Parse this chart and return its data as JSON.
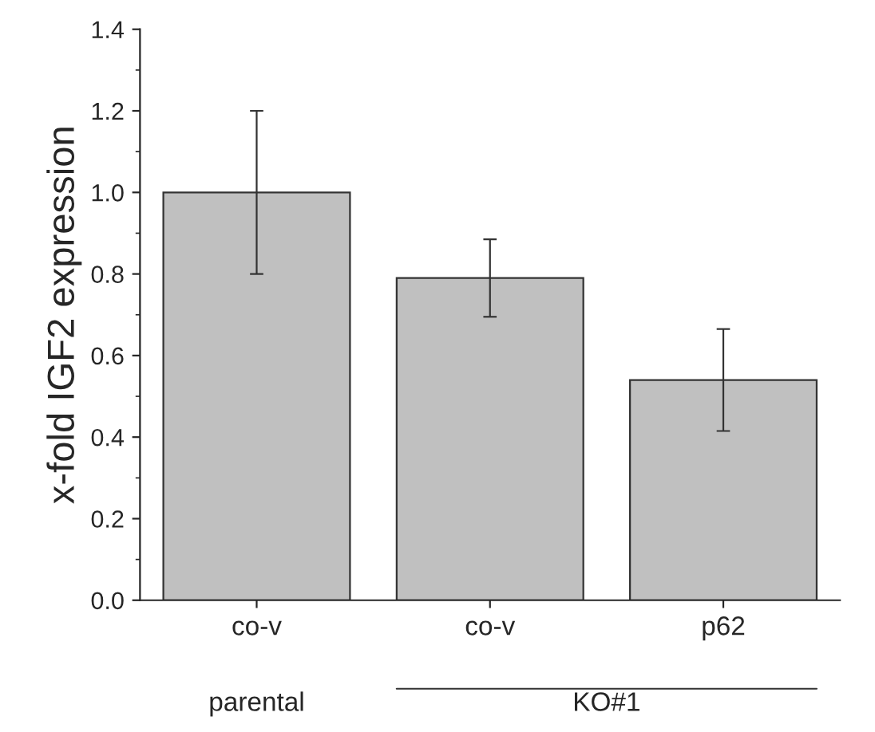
{
  "chart_data": {
    "type": "bar",
    "ylabel": "x-fold IGF2 expression",
    "categories": [
      "co-v",
      "co-v",
      "p62"
    ],
    "values": [
      1.0,
      0.79,
      0.54
    ],
    "errors": [
      0.2,
      0.095,
      0.125
    ],
    "color": "#c0c0c0",
    "ylim": [
      0,
      1.4
    ],
    "yticks": [
      {
        "value": 0,
        "label": "0.0"
      },
      0.2,
      0.4,
      0.6,
      0.8,
      {
        "value": 1,
        "label": "1.0"
      },
      1.2,
      1.4
    ],
    "annotations": [
      "parental",
      "KO#1"
    ],
    "grid": false
  }
}
